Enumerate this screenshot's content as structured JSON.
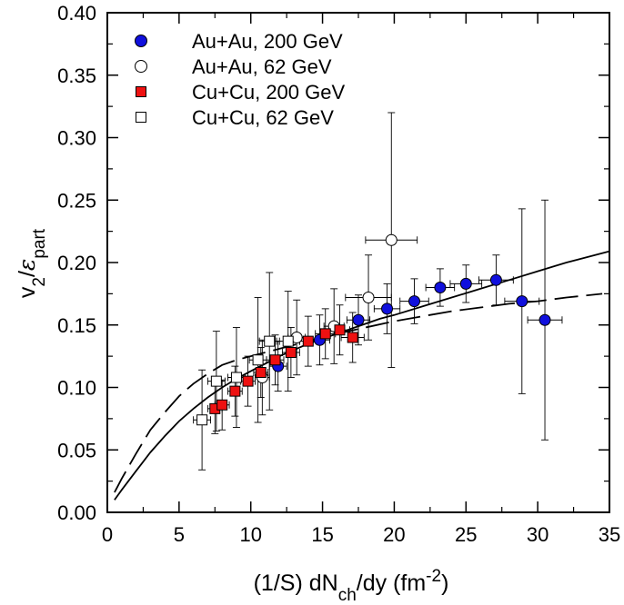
{
  "chart_data": {
    "type": "scatter",
    "xlabel": {
      "pre": "(1/S) dN",
      "sub": "ch",
      "mid": "/dy (fm",
      "sup": "-2",
      "post": ")"
    },
    "ylabel": {
      "v": "v",
      "v_sub": "2",
      "slash": "/",
      "eps": "ε",
      "eps_sub": "part"
    },
    "xlim": [
      0,
      35
    ],
    "ylim": [
      0,
      0.4
    ],
    "x_ticks": [
      "0",
      "5",
      "10",
      "15",
      "20",
      "25",
      "30",
      "35"
    ],
    "y_ticks": [
      "0.00",
      "0.05",
      "0.10",
      "0.15",
      "0.20",
      "0.25",
      "0.30",
      "0.35",
      "0.40"
    ],
    "grid": false,
    "legend_position": "top-left",
    "series": [
      {
        "name": "Au+Au, 200 GeV",
        "marker": "circle",
        "fill": "#1010dd",
        "stroke": "#000000",
        "points": [
          {
            "x": 11.9,
            "y": 0.117,
            "xerr": 0.6,
            "yerr": 0.02
          },
          {
            "x": 14.8,
            "y": 0.138,
            "xerr": 0.7,
            "yerr": 0.02
          },
          {
            "x": 17.5,
            "y": 0.154,
            "xerr": 0.8,
            "yerr": 0.02
          },
          {
            "x": 19.5,
            "y": 0.163,
            "xerr": 0.9,
            "yerr": 0.02
          },
          {
            "x": 21.4,
            "y": 0.169,
            "xerr": 1.0,
            "yerr": 0.018
          },
          {
            "x": 23.2,
            "y": 0.18,
            "xerr": 1.0,
            "yerr": 0.015
          },
          {
            "x": 25.0,
            "y": 0.183,
            "xerr": 1.1,
            "yerr": 0.015
          },
          {
            "x": 27.1,
            "y": 0.186,
            "xerr": 1.2,
            "yerr": 0.02
          },
          {
            "x": 28.9,
            "y": 0.169,
            "xerr": 1.2,
            "yerr": 0.074
          },
          {
            "x": 30.5,
            "y": 0.154,
            "xerr": 1.2,
            "yerr": 0.096
          }
        ]
      },
      {
        "name": "Au+Au, 62 GeV",
        "marker": "circle",
        "fill": "#ffffff",
        "stroke": "#000000",
        "points": [
          {
            "x": 10.8,
            "y": 0.108,
            "xerr": 0.5,
            "yerr": 0.03
          },
          {
            "x": 13.2,
            "y": 0.14,
            "xerr": 0.6,
            "yerr": 0.03
          },
          {
            "x": 15.8,
            "y": 0.149,
            "xerr": 0.7,
            "yerr": 0.03
          },
          {
            "x": 18.2,
            "y": 0.172,
            "xerr": 1.6,
            "yerr": 0.034
          },
          {
            "x": 19.8,
            "y": 0.218,
            "xerr": 1.8,
            "yerr": 0.102
          }
        ]
      },
      {
        "name": "Cu+Cu, 200 GeV",
        "marker": "square",
        "fill": "#ee1111",
        "stroke": "#000000",
        "points": [
          {
            "x": 7.5,
            "y": 0.083,
            "xerr": 0.5,
            "yerr": 0.02
          },
          {
            "x": 8.0,
            "y": 0.086,
            "xerr": 0.5,
            "yerr": 0.02
          },
          {
            "x": 8.9,
            "y": 0.097,
            "xerr": 0.5,
            "yerr": 0.02
          },
          {
            "x": 9.8,
            "y": 0.105,
            "xerr": 0.5,
            "yerr": 0.02
          },
          {
            "x": 10.7,
            "y": 0.112,
            "xerr": 0.5,
            "yerr": 0.02
          },
          {
            "x": 11.7,
            "y": 0.122,
            "xerr": 0.6,
            "yerr": 0.02
          },
          {
            "x": 12.8,
            "y": 0.128,
            "xerr": 0.6,
            "yerr": 0.02
          },
          {
            "x": 14.0,
            "y": 0.137,
            "xerr": 0.6,
            "yerr": 0.02
          },
          {
            "x": 15.2,
            "y": 0.143,
            "xerr": 0.7,
            "yerr": 0.02
          },
          {
            "x": 16.2,
            "y": 0.146,
            "xerr": 0.7,
            "yerr": 0.02
          },
          {
            "x": 17.1,
            "y": 0.14,
            "xerr": 0.8,
            "yerr": 0.02
          }
        ]
      },
      {
        "name": "Cu+Cu, 62 GeV",
        "marker": "square",
        "fill": "#ffffff",
        "stroke": "#000000",
        "points": [
          {
            "x": 6.6,
            "y": 0.074,
            "xerr": 0.6,
            "yerr": 0.04
          },
          {
            "x": 7.6,
            "y": 0.105,
            "xerr": 0.6,
            "yerr": 0.04
          },
          {
            "x": 9.0,
            "y": 0.108,
            "xerr": 0.6,
            "yerr": 0.04
          },
          {
            "x": 10.5,
            "y": 0.122,
            "xerr": 0.6,
            "yerr": 0.05
          },
          {
            "x": 11.3,
            "y": 0.137,
            "xerr": 0.7,
            "yerr": 0.055
          },
          {
            "x": 12.6,
            "y": 0.137,
            "xerr": 0.8,
            "yerr": 0.04
          }
        ]
      }
    ],
    "curves": [
      {
        "style": "solid",
        "points": [
          [
            0.5,
            0.01
          ],
          [
            1,
            0.018
          ],
          [
            2,
            0.033
          ],
          [
            3,
            0.048
          ],
          [
            4,
            0.061
          ],
          [
            5,
            0.073
          ],
          [
            6,
            0.083
          ],
          [
            7,
            0.092
          ],
          [
            8,
            0.1
          ],
          [
            9,
            0.107
          ],
          [
            10,
            0.113
          ],
          [
            11,
            0.119
          ],
          [
            12,
            0.125
          ],
          [
            13,
            0.13
          ],
          [
            14,
            0.135
          ],
          [
            15,
            0.139
          ],
          [
            16,
            0.143
          ],
          [
            17,
            0.147
          ],
          [
            18,
            0.151
          ],
          [
            19,
            0.155
          ],
          [
            20,
            0.158
          ],
          [
            22,
            0.165
          ],
          [
            24,
            0.172
          ],
          [
            26,
            0.179
          ],
          [
            28,
            0.186
          ],
          [
            30,
            0.193
          ],
          [
            32,
            0.2
          ],
          [
            35,
            0.209
          ]
        ]
      },
      {
        "style": "dashed",
        "points": [
          [
            0.5,
            0.016
          ],
          [
            1,
            0.027
          ],
          [
            2,
            0.047
          ],
          [
            3,
            0.066
          ],
          [
            4,
            0.08
          ],
          [
            5,
            0.093
          ],
          [
            6,
            0.103
          ],
          [
            7,
            0.111
          ],
          [
            8,
            0.118
          ],
          [
            9,
            0.122
          ],
          [
            10,
            0.125
          ],
          [
            11,
            0.128
          ],
          [
            12,
            0.131
          ],
          [
            13,
            0.134
          ],
          [
            14,
            0.137
          ],
          [
            15,
            0.14
          ],
          [
            16,
            0.143
          ],
          [
            18,
            0.148
          ],
          [
            20,
            0.153
          ],
          [
            22,
            0.157
          ],
          [
            24,
            0.161
          ],
          [
            26,
            0.164
          ],
          [
            28,
            0.167
          ],
          [
            30,
            0.169
          ],
          [
            32,
            0.172
          ],
          [
            34.5,
            0.175
          ]
        ]
      }
    ]
  }
}
